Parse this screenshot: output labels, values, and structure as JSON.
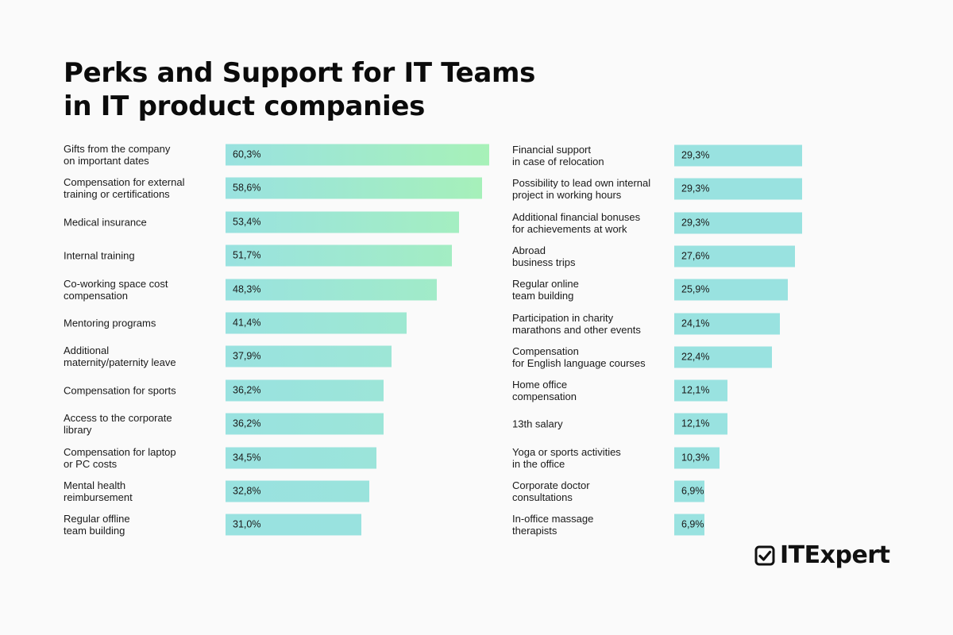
{
  "title": {
    "line1": "Perks and Support for IT Teams",
    "line2": "in IT product companies"
  },
  "colors": {
    "bar_start": "#99e2e0",
    "bar_end": "#a7f1b8",
    "text": "#111111",
    "background": "#fafafa"
  },
  "chart_data": [
    {
      "type": "bar",
      "orientation": "horizontal",
      "title": "Perks and Support for IT Teams in IT product companies",
      "unit": "%",
      "xlim": [
        0,
        60.3
      ],
      "categories": [
        "Gifts from the company\non important dates",
        "Compensation for external\ntraining or certifications",
        "Medical insurance",
        "Internal training",
        "Co-working space cost\ncompensation",
        "Mentoring programs",
        "Additional\nmaternity/paternity leave",
        "Compensation for sports",
        "Access to the corporate\nlibrary",
        "Compensation for laptop\nor PC costs",
        "Mental health\nreimbursement",
        "Regular offline\nteam building"
      ],
      "values": [
        60.3,
        58.6,
        53.4,
        51.7,
        48.3,
        41.4,
        37.9,
        36.2,
        36.2,
        34.5,
        32.8,
        31.0
      ],
      "value_labels": [
        "60,3%",
        "58,6%",
        "53,4%",
        "51,7%",
        "48,3%",
        "41,4%",
        "37,9%",
        "36,2%",
        "36,2%",
        "34,5%",
        "32,8%",
        "31,0%"
      ]
    },
    {
      "type": "bar",
      "orientation": "horizontal",
      "unit": "%",
      "xlim": [
        0,
        60.3
      ],
      "categories": [
        "Financial support\nin case of relocation",
        "Possibility to lead own internal\nproject in working hours",
        "Additional financial bonuses\nfor achievements at work",
        "Abroad\nbusiness trips",
        "Regular online\nteam building",
        "Participation in charity\nmarathons and other events",
        "Compensation\nfor English language courses",
        "Home office\ncompensation",
        "13th salary",
        "Yoga or sports activities\nin the office",
        "Corporate doctor\nconsultations",
        "In-office massage\ntherapists"
      ],
      "values": [
        29.3,
        29.3,
        29.3,
        27.6,
        25.9,
        24.1,
        22.4,
        12.1,
        12.1,
        10.3,
        6.9,
        6.9
      ],
      "value_labels": [
        "29,3%",
        "29,3%",
        "29,3%",
        "27,6%",
        "25,9%",
        "24,1%",
        "22,4%",
        "12,1%",
        "12,1%",
        "10,3%",
        "6,9%",
        "6,9%"
      ]
    }
  ],
  "logo": {
    "text": "ITExpert",
    "icon": "checkbox-check-icon"
  }
}
